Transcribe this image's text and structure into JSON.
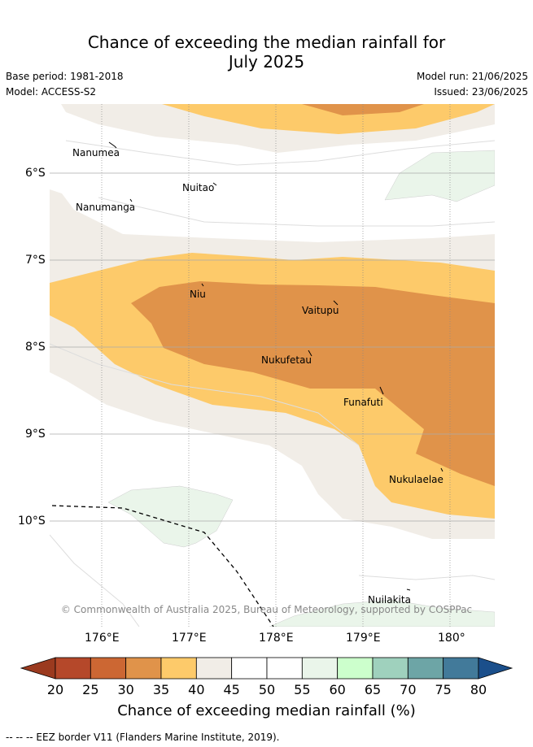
{
  "title_line1": "Chance of exceeding the median rainfall for",
  "title_line2": "July 2025",
  "base_period": "Base period: 1981-2018",
  "model": "Model: ACCESS-S2",
  "model_run": "Model run: 21/06/2025",
  "issued": "Issued: 23/06/2025",
  "copyright": "© Commonwealth of Australia 2025, Bureau of Meteorology, supported by COSPPac",
  "lat_labels": [
    "6°S",
    "7°S",
    "8°S",
    "9°S",
    "10°S"
  ],
  "lon_labels": [
    "176°E",
    "177°E",
    "178°E",
    "179°E",
    "180°"
  ],
  "places": [
    "Nanumea",
    "Nuitao",
    "Nanumanga",
    "Niu",
    "Vaitupu",
    "Nukufetau",
    "Funafuti",
    "Nukulaelae",
    "Nuilakita"
  ],
  "colorbar": {
    "title": "Chance of exceeding median rainfall (%)",
    "labels": [
      "20",
      "25",
      "30",
      "35",
      "40",
      "45",
      "50",
      "55",
      "60",
      "65",
      "70",
      "75",
      "80"
    ],
    "colors": [
      "#b5482a",
      "#cc6733",
      "#e0934a",
      "#fdca6a",
      "#f1ede7",
      "#ffffff",
      "#ffffff",
      "#eaf5ea",
      "#ccffcc",
      "#9fd1bd",
      "#6da5a6",
      "#427a9a"
    ],
    "under_color": "#9b3a1f",
    "over_color": "#1b4f8b"
  },
  "footnote": "-- -- -- EEZ border V11 (Flanders Marine Institute, 2019)."
}
